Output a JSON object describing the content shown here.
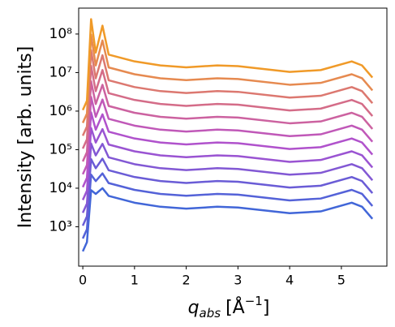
{
  "chart_data": {
    "type": "line",
    "log_y": true,
    "x_label": [
      "q",
      "abs",
      "[Å",
      "−1",
      "]"
    ],
    "y_label": "Intensity [arb. units]",
    "x": [
      0,
      0.08,
      0.16,
      0.25,
      0.38,
      0.5,
      1.0,
      1.5,
      2.0,
      2.6,
      3.0,
      4.0,
      4.6,
      5.2,
      5.4,
      5.6
    ],
    "series": [
      {
        "color": "#4166d8",
        "values": [
          230,
          400,
          8900,
          7100,
          10000,
          6300,
          4200,
          3300,
          2950,
          3300,
          3160,
          2240,
          2500,
          4200,
          3300,
          1600
        ]
      },
      {
        "color": "#5462d8",
        "values": [
          495,
          862,
          22500,
          15290,
          24200,
          13570,
          9050,
          7110,
          6350,
          7110,
          6810,
          4830,
          5390,
          9050,
          7110,
          3450
        ]
      },
      {
        "color": "#6a5cd6",
        "values": [
          1068,
          1857,
          57000,
          32960,
          58400,
          29240,
          19500,
          15320,
          13690,
          15320,
          14670,
          10400,
          11600,
          19500,
          15320,
          7430
        ]
      },
      {
        "color": "#8258d4",
        "values": [
          2300,
          4000,
          144000,
          71000,
          141300,
          63000,
          42000,
          33000,
          29500,
          33000,
          31600,
          22400,
          25000,
          42000,
          33000,
          16000
        ]
      },
      {
        "color": "#9a54d2",
        "values": [
          4950,
          8620,
          365000,
          152900,
          341000,
          135700,
          90500,
          71100,
          63500,
          71100,
          68100,
          48300,
          53900,
          90500,
          71100,
          34500
        ]
      },
      {
        "color": "#b052cc",
        "values": [
          10680,
          18570,
          925000,
          329600,
          825000,
          292400,
          195000,
          153200,
          136900,
          153200,
          146700,
          104000,
          116000,
          195000,
          153200,
          74300
        ]
      },
      {
        "color": "#c058b8",
        "values": [
          23000,
          40000,
          2340000,
          710000,
          1995000,
          630000,
          420000,
          330000,
          295000,
          330000,
          316000,
          224000,
          250000,
          420000,
          330000,
          160000
        ]
      },
      {
        "color": "#cc62a0",
        "values": [
          49500,
          86200,
          5920000,
          1529000,
          4820000,
          1357000,
          905000,
          711000,
          635000,
          711000,
          681000,
          483000,
          539000,
          905000,
          711000,
          345000
        ]
      },
      {
        "color": "#d46c88",
        "values": [
          106800,
          185700,
          15000000,
          3296000,
          11660000,
          2924000,
          1950000,
          1532000,
          1369000,
          1532000,
          1467000,
          1040000,
          1160000,
          1950000,
          1532000,
          743000
        ]
      },
      {
        "color": "#dc7870",
        "values": [
          230000,
          400000,
          38000000,
          7100000,
          28180000,
          6300000,
          4200000,
          3300000,
          2950000,
          3300000,
          3160000,
          2240000,
          2500000,
          4200000,
          3300000,
          1600000
        ]
      },
      {
        "color": "#e68a50",
        "values": [
          495000,
          862000,
          96000000,
          15290000,
          68100000,
          13570000,
          9050000,
          7110000,
          6350000,
          7110000,
          6810000,
          4830000,
          5390000,
          9050000,
          7110000,
          3450000
        ]
      },
      {
        "color": "#f09a28",
        "values": [
          1068000,
          1857000,
          243000000,
          32960000,
          164700000,
          29240000,
          19500000,
          15320000,
          13690000,
          15320000,
          14670000,
          10400000,
          11600000,
          19500000,
          15320000,
          7430000
        ]
      }
    ],
    "xlim": [
      -0.08,
      5.88
    ],
    "xticks": [
      0,
      1,
      2,
      3,
      4,
      5
    ],
    "ylim": [
      95,
      470000000
    ],
    "yticks": [
      {
        "value": 1000,
        "label": "10³"
      },
      {
        "value": 10000,
        "label": "10⁴"
      },
      {
        "value": 100000,
        "label": "10⁵"
      },
      {
        "value": 1000000,
        "label": "10⁶"
      },
      {
        "value": 10000000,
        "label": "10⁷"
      },
      {
        "value": 100000000,
        "label": "10⁸"
      }
    ],
    "grid": false
  }
}
